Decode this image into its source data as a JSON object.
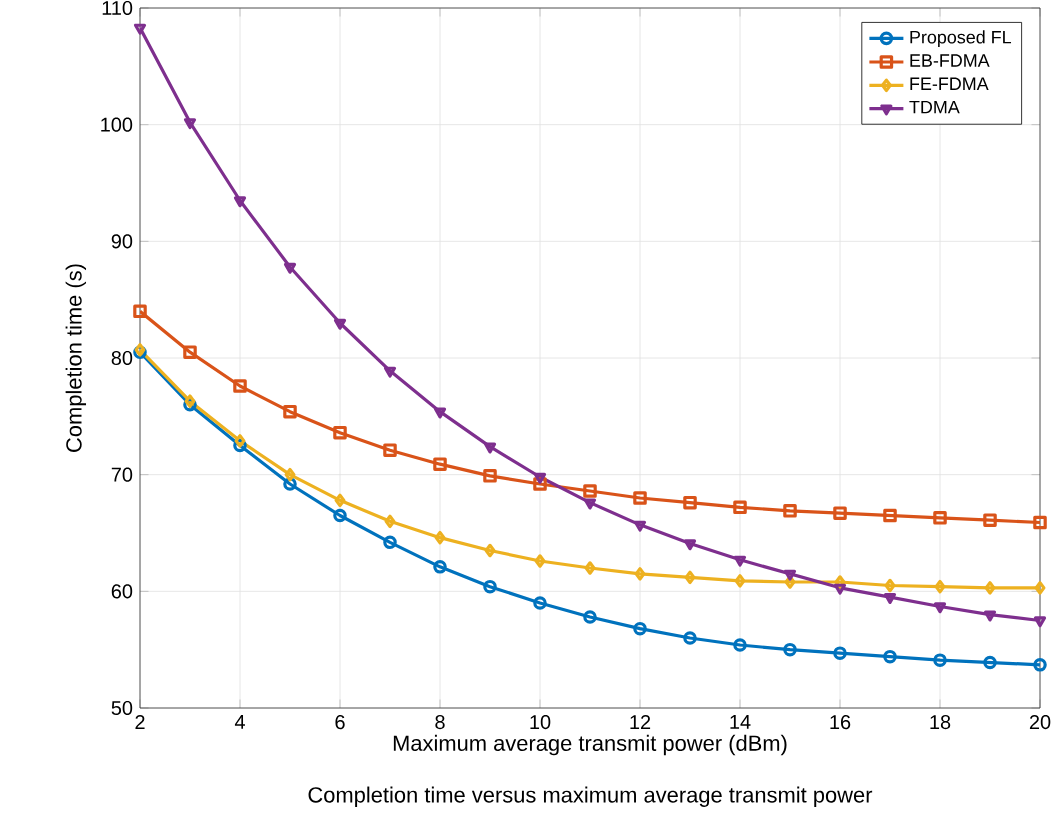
{
  "chart_data": {
    "type": "line",
    "xlabel": "Maximum average transmit power (dBm)",
    "ylabel": "Completion time (s)",
    "x": [
      2,
      3,
      4,
      5,
      6,
      7,
      8,
      9,
      10,
      11,
      12,
      13,
      14,
      15,
      16,
      17,
      18,
      19,
      20
    ],
    "xlim": [
      2,
      20
    ],
    "xticks": [
      2,
      4,
      6,
      8,
      10,
      12,
      14,
      16,
      18,
      20
    ],
    "ylim": [
      50,
      110
    ],
    "yticks": [
      50,
      60,
      70,
      80,
      90,
      100,
      110
    ],
    "grid": true,
    "legend": "top right",
    "line_style": "solid",
    "annotations": [
      "Completion time versus maximum average transmit power"
    ],
    "series": [
      {
        "name": "Proposed FL",
        "color": "#0072bd",
        "marker": "circle",
        "values": [
          80.5,
          76,
          72.5,
          69.2,
          66.5,
          64.2,
          62.1,
          60.4,
          59.0,
          57.8,
          56.8,
          56.0,
          55.4,
          55.0,
          54.7,
          54.4,
          54.1,
          53.9,
          53.7
        ]
      },
      {
        "name": "EB-FDMA",
        "color": "#d95319",
        "marker": "square",
        "values": [
          84,
          80.5,
          77.6,
          75.4,
          73.6,
          72.1,
          70.9,
          69.9,
          69.2,
          68.6,
          68.0,
          67.6,
          67.2,
          66.9,
          66.7,
          66.5,
          66.3,
          66.1,
          65.9
        ]
      },
      {
        "name": "FE-FDMA",
        "color": "#edb120",
        "marker": "diamond",
        "values": [
          80.7,
          76.3,
          72.9,
          70.0,
          67.8,
          66.0,
          64.6,
          63.5,
          62.6,
          62.0,
          61.5,
          61.2,
          60.9,
          60.8,
          60.8,
          60.5,
          60.4,
          60.3,
          60.3
        ]
      },
      {
        "name": "TDMA",
        "color": "#7e2f8e",
        "marker": "triangle",
        "values": [
          108.3,
          100.2,
          93.5,
          87.8,
          83.0,
          78.9,
          75.4,
          72.4,
          69.8,
          67.6,
          65.7,
          64.1,
          62.7,
          61.5,
          60.3,
          59.5,
          58.7,
          58.0,
          57.5
        ]
      }
    ]
  }
}
